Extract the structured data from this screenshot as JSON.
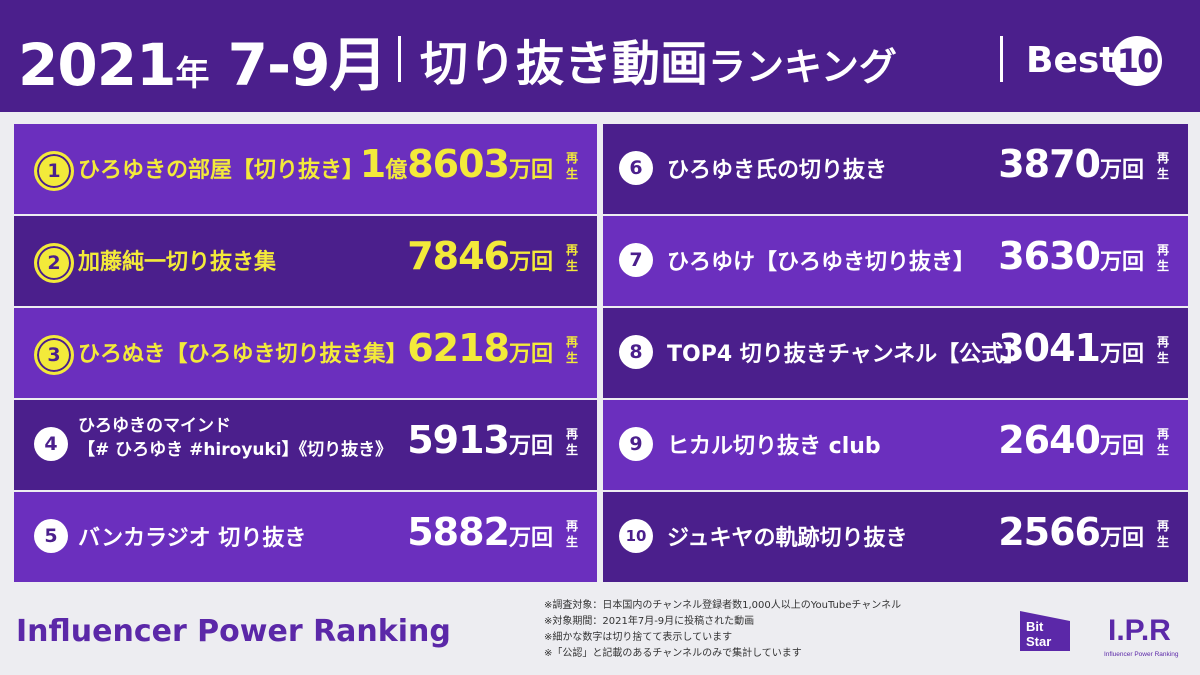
{
  "header": {
    "year": "2021",
    "year_unit": "年",
    "months": "7-9",
    "month_unit": "月",
    "title_main": "切り抜き動画",
    "title_sub": "ランキング",
    "best_label": "Best",
    "best_number": "10"
  },
  "rankings": [
    {
      "rank": "1",
      "name": "ひろゆきの部屋【切り抜き】",
      "value_prefix": "1",
      "value_prefix_unit": "億",
      "value": "8603",
      "unit": "万回",
      "suffix1": "再",
      "suffix2": "生"
    },
    {
      "rank": "2",
      "name": "加藤純一切り抜き集",
      "value": "7846",
      "unit": "万回",
      "suffix1": "再",
      "suffix2": "生"
    },
    {
      "rank": "3",
      "name": "ひろぬき【ひろゆき切り抜き集】",
      "value": "6218",
      "unit": "万回",
      "suffix1": "再",
      "suffix2": "生"
    },
    {
      "rank": "4",
      "name_line1": "ひろゆきのマインド",
      "name_line2": "【# ひろゆき #hiroyuki】《切り抜き》",
      "value": "5913",
      "unit": "万回",
      "suffix1": "再",
      "suffix2": "生"
    },
    {
      "rank": "5",
      "name": "バンカラジオ 切り抜き",
      "value": "5882",
      "unit": "万回",
      "suffix1": "再",
      "suffix2": "生"
    },
    {
      "rank": "6",
      "name": "ひろゆき氏の切り抜き",
      "value": "3870",
      "unit": "万回",
      "suffix1": "再",
      "suffix2": "生"
    },
    {
      "rank": "7",
      "name": "ひろゆけ【ひろゆき切り抜き】",
      "value": "3630",
      "unit": "万回",
      "suffix1": "再",
      "suffix2": "生"
    },
    {
      "rank": "8",
      "name": "TOP4 切り抜きチャンネル【公式】",
      "value": "3041",
      "unit": "万回",
      "suffix1": "再",
      "suffix2": "生"
    },
    {
      "rank": "9",
      "name": "ヒカル切り抜き club",
      "value": "2640",
      "unit": "万回",
      "suffix1": "再",
      "suffix2": "生"
    },
    {
      "rank": "10",
      "name": "ジュキヤの軌跡切り抜き",
      "value": "2566",
      "unit": "万回",
      "suffix1": "再",
      "suffix2": "生"
    }
  ],
  "footer": {
    "brand": "Influencer Power Ranking",
    "notes": [
      "※調査対象：日本国内のチャンネル登録者数1,000人以上のYouTubeチャンネル",
      "※対象期間：2021年7月-9月に投稿された動画",
      "※細かな数字は切り捨てて表示しています",
      "※「公認」と記載のあるチャンネルのみで集計しています"
    ],
    "logo_bitstar_line1": "Bit",
    "logo_bitstar_line2": "Star",
    "logo_ipr": "I.P.R",
    "logo_ipr_sub": "Influencer Power Ranking"
  },
  "colors": {
    "header_bg": "#4b1f8c",
    "row_purple": "#6b2fbe",
    "row_dark": "#4b1f8c",
    "gold": "#f3ea3a",
    "background": "#ededf1"
  }
}
